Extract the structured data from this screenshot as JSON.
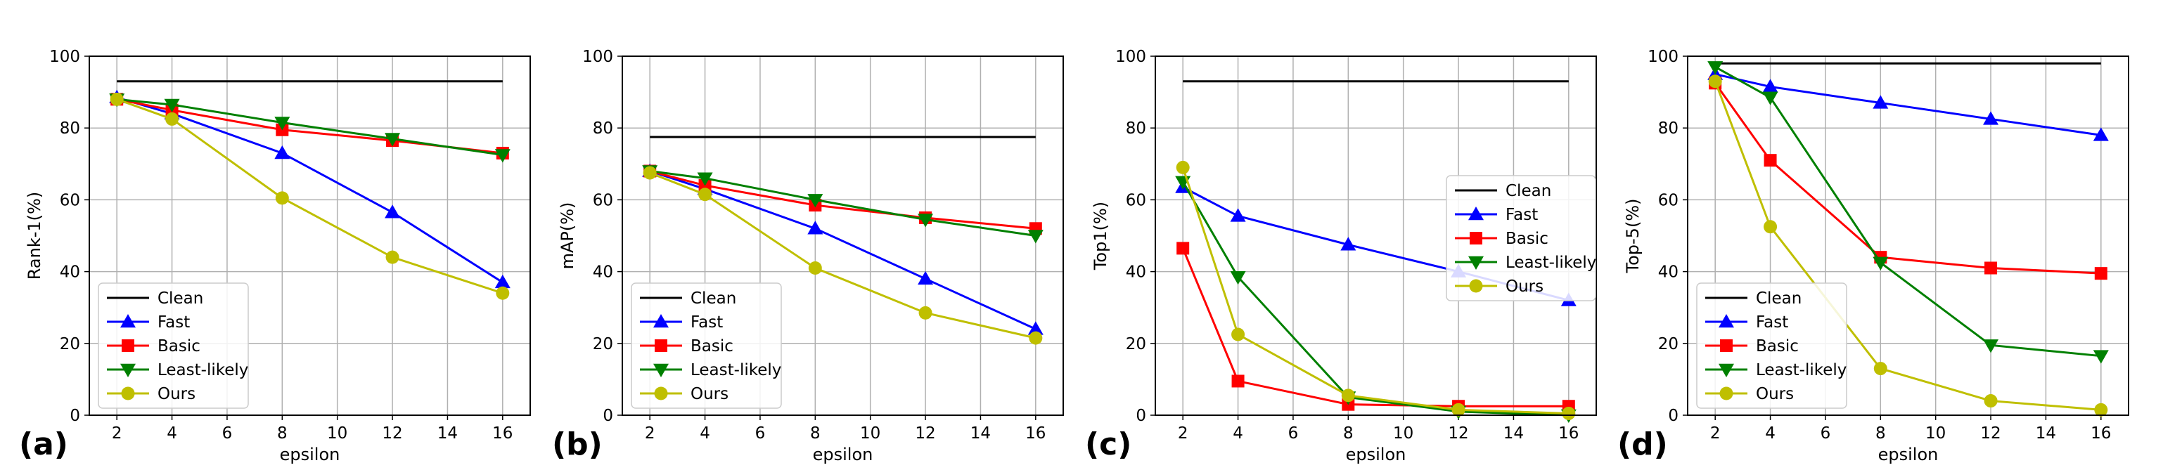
{
  "figure": {
    "panels": [
      "(a)",
      "(b)",
      "(c)",
      "(d)"
    ]
  },
  "chart_data": [
    {
      "type": "line",
      "panel_label": "(a)",
      "xlabel": "epsilon",
      "ylabel": "Rank-1(%)",
      "x": [
        2,
        4,
        8,
        12,
        16
      ],
      "xlim": [
        1,
        17
      ],
      "ylim": [
        0,
        100
      ],
      "xticks": [
        2,
        4,
        6,
        8,
        10,
        12,
        14,
        16
      ],
      "yticks": [
        0,
        20,
        40,
        60,
        80,
        100
      ],
      "grid": true,
      "legend_position": "lower-left",
      "series": [
        {
          "name": "Clean",
          "color": "#000000",
          "marker": "none",
          "values": [
            93,
            93,
            93,
            93,
            93
          ]
        },
        {
          "name": "Fast",
          "color": "#0000ff",
          "marker": "triangle-up",
          "values": [
            88.5,
            84,
            73,
            56.5,
            37
          ]
        },
        {
          "name": "Basic",
          "color": "#ff0000",
          "marker": "square",
          "values": [
            88,
            85,
            79.5,
            76.5,
            73
          ]
        },
        {
          "name": "Least-likely",
          "color": "#008000",
          "marker": "triangle-down",
          "values": [
            88,
            86.5,
            81.5,
            77,
            72.5
          ]
        },
        {
          "name": "Ours",
          "color": "#bfbf00",
          "marker": "circle",
          "values": [
            88,
            82.5,
            60.5,
            44,
            34
          ]
        }
      ]
    },
    {
      "type": "line",
      "panel_label": "(b)",
      "xlabel": "epsilon",
      "ylabel": "mAP(%)",
      "x": [
        2,
        4,
        8,
        12,
        16
      ],
      "xlim": [
        1,
        17
      ],
      "ylim": [
        0,
        100
      ],
      "xticks": [
        2,
        4,
        6,
        8,
        10,
        12,
        14,
        16
      ],
      "yticks": [
        0,
        20,
        40,
        60,
        80,
        100
      ],
      "grid": true,
      "legend_position": "lower-left",
      "series": [
        {
          "name": "Clean",
          "color": "#000000",
          "marker": "none",
          "values": [
            77.5,
            77.5,
            77.5,
            77.5,
            77.5
          ]
        },
        {
          "name": "Fast",
          "color": "#0000ff",
          "marker": "triangle-up",
          "values": [
            68,
            63,
            52,
            38,
            24
          ]
        },
        {
          "name": "Basic",
          "color": "#ff0000",
          "marker": "square",
          "values": [
            68,
            64,
            58.5,
            55,
            52
          ]
        },
        {
          "name": "Least-likely",
          "color": "#008000",
          "marker": "triangle-down",
          "values": [
            68,
            66,
            60,
            54.5,
            50
          ]
        },
        {
          "name": "Ours",
          "color": "#bfbf00",
          "marker": "circle",
          "values": [
            67.5,
            61.5,
            41,
            28.5,
            21.5
          ]
        }
      ]
    },
    {
      "type": "line",
      "panel_label": "(c)",
      "xlabel": "epsilon",
      "ylabel": "Top1(%)",
      "x": [
        2,
        4,
        8,
        12,
        16
      ],
      "xlim": [
        1,
        17
      ],
      "ylim": [
        0,
        100
      ],
      "xticks": [
        2,
        4,
        6,
        8,
        10,
        12,
        14,
        16
      ],
      "yticks": [
        0,
        20,
        40,
        60,
        80,
        100
      ],
      "grid": true,
      "legend_position": "center-right",
      "series": [
        {
          "name": "Clean",
          "color": "#000000",
          "marker": "none",
          "values": [
            93,
            93,
            93,
            93,
            93
          ]
        },
        {
          "name": "Fast",
          "color": "#0000ff",
          "marker": "triangle-up",
          "values": [
            63.5,
            55.5,
            47.5,
            40,
            32
          ]
        },
        {
          "name": "Basic",
          "color": "#ff0000",
          "marker": "square",
          "values": [
            46.5,
            9.5,
            3,
            2.5,
            2.5
          ]
        },
        {
          "name": "Least-likely",
          "color": "#008000",
          "marker": "triangle-down",
          "values": [
            65,
            38.5,
            5,
            1,
            0
          ]
        },
        {
          "name": "Ours",
          "color": "#bfbf00",
          "marker": "circle",
          "values": [
            69,
            22.5,
            5.5,
            1.5,
            0.5
          ]
        }
      ]
    },
    {
      "type": "line",
      "panel_label": "(d)",
      "xlabel": "epsilon",
      "ylabel": "Top-5(%)",
      "x": [
        2,
        4,
        8,
        12,
        16
      ],
      "xlim": [
        1,
        17
      ],
      "ylim": [
        0,
        100
      ],
      "xticks": [
        2,
        4,
        6,
        8,
        10,
        12,
        14,
        16
      ],
      "yticks": [
        0,
        20,
        40,
        60,
        80,
        100
      ],
      "grid": true,
      "legend_position": "lower-left",
      "series": [
        {
          "name": "Clean",
          "color": "#000000",
          "marker": "none",
          "values": [
            98,
            98,
            98,
            98,
            98
          ]
        },
        {
          "name": "Fast",
          "color": "#0000ff",
          "marker": "triangle-up",
          "values": [
            95,
            91.5,
            87,
            82.5,
            78
          ]
        },
        {
          "name": "Basic",
          "color": "#ff0000",
          "marker": "square",
          "values": [
            92.5,
            71,
            44,
            41,
            39.5
          ]
        },
        {
          "name": "Least-likely",
          "color": "#008000",
          "marker": "triangle-down",
          "values": [
            97,
            88.5,
            42.5,
            19.5,
            16.5
          ]
        },
        {
          "name": "Ours",
          "color": "#bfbf00",
          "marker": "circle",
          "values": [
            93,
            52.5,
            13,
            4,
            1.5
          ]
        }
      ]
    }
  ]
}
